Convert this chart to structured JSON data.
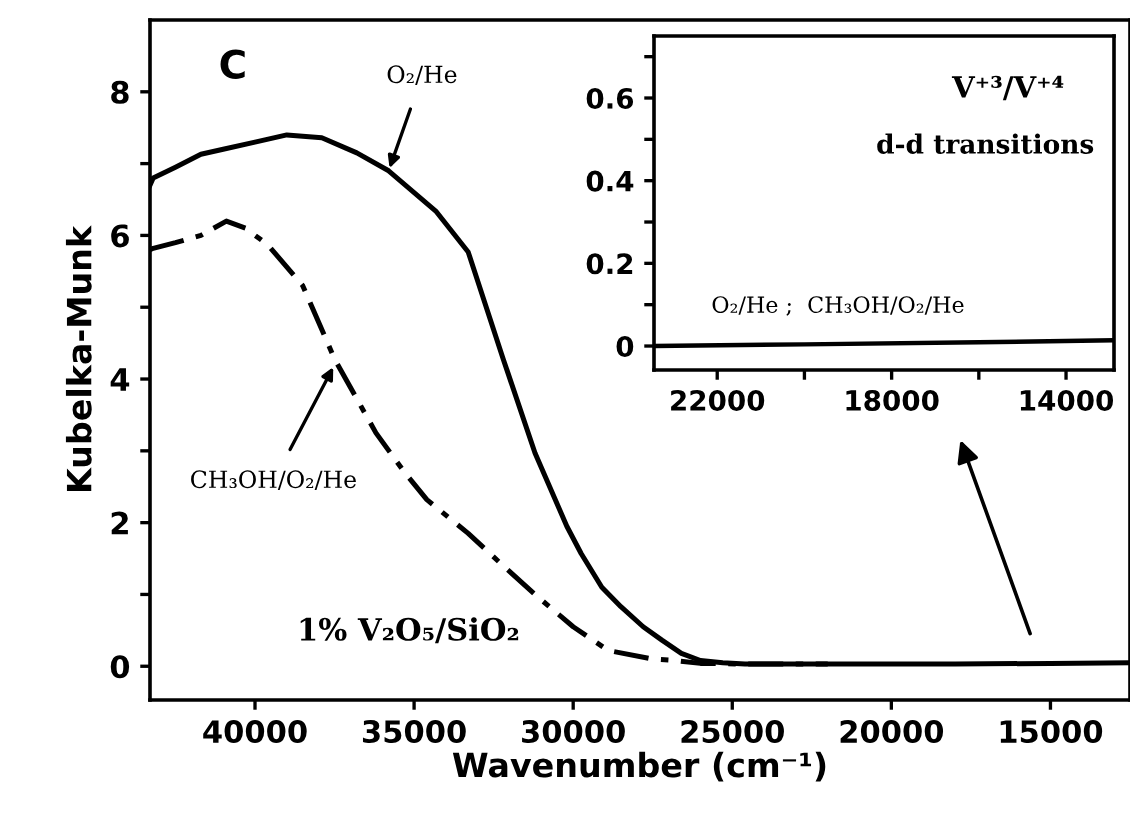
{
  "chart_data": [
    {
      "type": "line",
      "xlabel": "Wavenumber (cm⁻¹)",
      "ylabel": "Kubelka-Munk",
      "xlim": [
        43300,
        12500
      ],
      "ylim": [
        -0.47,
        9.0
      ],
      "xticks": [
        40000,
        35000,
        30000,
        25000,
        20000,
        15000
      ],
      "yticks": [
        0,
        {
          "value": 1,
          "label": null
        },
        2,
        {
          "value": 3,
          "label": null
        },
        4,
        {
          "value": 5,
          "label": null
        },
        6,
        {
          "value": 7,
          "label": null
        },
        8
      ],
      "grid": false,
      "legend": false,
      "series": [
        {
          "color": "#000000",
          "line_style": "solid",
          "x": [
            43300,
            43200,
            42500,
            41700,
            41000,
            40000,
            39000,
            37900,
            36800,
            35800,
            34300,
            33300,
            32200,
            31200,
            30200,
            29750,
            29100,
            28500,
            27800,
            27200,
            26600,
            26000,
            25300,
            24600,
            22000,
            18000,
            15000,
            12500
          ],
          "values": [
            6.7,
            6.8,
            6.95,
            7.13,
            7.2,
            7.3,
            7.4,
            7.36,
            7.15,
            6.9,
            6.33,
            5.77,
            4.28,
            2.97,
            1.95,
            1.57,
            1.1,
            0.83,
            0.55,
            0.36,
            0.18,
            0.08,
            0.05,
            0.03,
            0.03,
            0.03,
            0.04,
            0.05
          ]
        },
        {
          "color": "#000000",
          "line_style": "dashed",
          "x": [
            43300,
            43200,
            42500,
            41700,
            40900,
            40300,
            39600,
            38500,
            37500,
            36200,
            35300,
            34600,
            33300,
            32200,
            31200,
            30000,
            28900,
            27500,
            26800,
            26000,
            24600,
            22000
          ],
          "values": [
            5.8,
            5.82,
            5.9,
            6.0,
            6.2,
            6.1,
            5.87,
            5.3,
            4.28,
            3.25,
            2.7,
            2.32,
            1.85,
            1.4,
            1.0,
            0.55,
            0.22,
            0.1,
            0.08,
            0.04,
            0.03,
            0.03
          ]
        }
      ],
      "annotations": [
        "C",
        "1% V₂O₅/SiO₂",
        {
          "text": "O₂/He",
          "x": 35800,
          "y": 6.9
        },
        {
          "text": "CH₃OH/O₂/He",
          "x": 37500,
          "y": 4.2
        }
      ]
    },
    {
      "type": "line",
      "xlim": [
        23450,
        12900
      ],
      "ylim": [
        -0.058,
        0.75
      ],
      "xticks": [
        22000,
        {
          "value": 20000,
          "label": null
        },
        18000,
        {
          "value": 16000,
          "label": null
        },
        14000
      ],
      "yticks": [
        0,
        {
          "value": 0.1,
          "label": null
        },
        0.2,
        {
          "value": 0.3,
          "label": null
        },
        0.4,
        {
          "value": 0.5,
          "label": null
        },
        0.6,
        {
          "value": 0.7,
          "label": null
        }
      ],
      "grid": false,
      "legend": false,
      "series": [
        {
          "color": "#000000",
          "line_style": "solid",
          "x": [
            23450,
            20000,
            16000,
            12900
          ],
          "values": [
            0.0,
            0.004,
            0.009,
            0.014
          ]
        }
      ],
      "annotations": [
        "V⁺³/V⁺⁴",
        "d-d transitions",
        "O₂/He ;  CH₃OH/O₂/He"
      ]
    }
  ]
}
